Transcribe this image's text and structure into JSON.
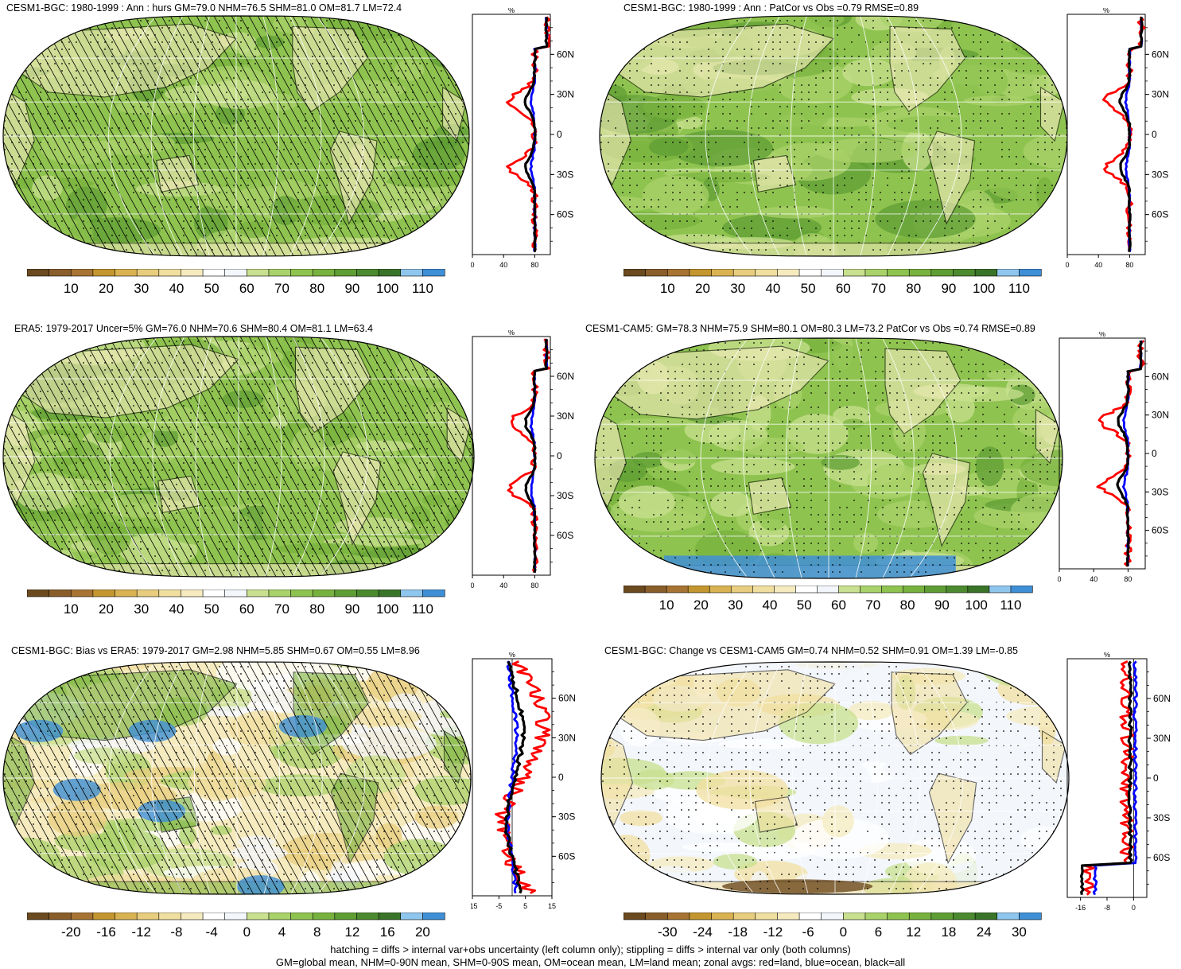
{
  "panels": [
    {
      "id": "p1",
      "title": "CESM1-BGC: 1980-1999 : Ann : hurs GM=79.0 NHM=76.5 SHM=81.0 OM=81.7 LM=72.4",
      "colorbar": {
        "labels": [
          "10",
          "20",
          "30",
          "40",
          "50",
          "60",
          "70",
          "80",
          "90",
          "100",
          "110"
        ]
      },
      "zonal": {
        "unit": "%",
        "lat_labels": [
          "60N",
          "30N",
          "0",
          "30S",
          "60S"
        ],
        "x_labels": [
          "0",
          "40",
          "80"
        ],
        "xlim": [
          0,
          100
        ],
        "zero_line": false
      }
    },
    {
      "id": "p2",
      "title": "CESM1-BGC: 1980-1999 : Ann : PatCor vs Obs =0.79 RMSE=0.89",
      "colorbar": {
        "labels": [
          "10",
          "20",
          "30",
          "40",
          "50",
          "60",
          "70",
          "80",
          "90",
          "100",
          "110"
        ]
      },
      "zonal": {
        "unit": "%",
        "lat_labels": [
          "60N",
          "30N",
          "0",
          "30S",
          "60S"
        ],
        "x_labels": [
          "0",
          "40",
          "80"
        ],
        "xlim": [
          0,
          100
        ],
        "zero_line": false
      }
    },
    {
      "id": "p3",
      "title": "ERA5: 1979-2017 Uncer=5% GM=76.0 NHM=70.6 SHM=80.4 OM=81.1 LM=63.4",
      "colorbar": {
        "labels": [
          "10",
          "20",
          "30",
          "40",
          "50",
          "60",
          "70",
          "80",
          "90",
          "100",
          "110"
        ]
      },
      "zonal": {
        "unit": "%",
        "lat_labels": [
          "60N",
          "30N",
          "0",
          "30S",
          "60S"
        ],
        "x_labels": [
          "0",
          "40",
          "80"
        ],
        "xlim": [
          0,
          100
        ],
        "zero_line": false
      }
    },
    {
      "id": "p4",
      "title": "CESM1-CAM5: GM=78.3 NHM=75.9 SHM=80.1 OM=80.3 LM=73.2 PatCor vs Obs =0.74 RMSE=0.89",
      "colorbar": {
        "labels": [
          "10",
          "20",
          "30",
          "40",
          "50",
          "60",
          "70",
          "80",
          "90",
          "100",
          "110"
        ]
      },
      "zonal": {
        "unit": "%",
        "lat_labels": [
          "60N",
          "30N",
          "0",
          "30S",
          "60S"
        ],
        "x_labels": [
          "0",
          "40",
          "80"
        ],
        "xlim": [
          0,
          100
        ],
        "zero_line": false
      }
    },
    {
      "id": "p5",
      "title": "CESM1-BGC: Bias vs ERA5: 1979-2017 GM=2.98 NHM=5.85 SHM=0.67 OM=0.55 LM=8.96",
      "colorbar": {
        "labels": [
          "-20",
          "-16",
          "-12",
          "-8",
          "-4",
          "0",
          "4",
          "8",
          "12",
          "16",
          "20"
        ]
      },
      "zonal": {
        "unit": "%",
        "lat_labels": [
          "60N",
          "30N",
          "0",
          "30S",
          "60S"
        ],
        "x_labels": [
          "-15",
          "-5",
          "5",
          "15"
        ],
        "xlim": [
          -15,
          15
        ],
        "zero_line": true
      }
    },
    {
      "id": "p6",
      "title": "CESM1-BGC: Change vs CESM1-CAM5 GM=0.74 NHM=0.52 SHM=0.91 OM=1.39 LM=-0.85",
      "colorbar": {
        "labels": [
          "-30",
          "-24",
          "-18",
          "-12",
          "-6",
          "0",
          "6",
          "12",
          "18",
          "24",
          "30"
        ]
      },
      "zonal": {
        "unit": "%",
        "lat_labels": [
          "60N",
          "30N",
          "0",
          "30S",
          "60S"
        ],
        "x_labels": [
          "-16",
          "-8",
          "0"
        ],
        "xlim": [
          -20,
          4
        ],
        "zero_line": true
      }
    }
  ],
  "palettes": {
    "absolute": [
      "#6b4a1f",
      "#8a5e2a",
      "#a87433",
      "#c4962f",
      "#d9b352",
      "#e8cd7e",
      "#f1dfa0",
      "#f6ebbf",
      "#ffffff",
      "#f3f6fb",
      "#c8e08f",
      "#a9d26a",
      "#8fc350",
      "#78b23e",
      "#5f9e34",
      "#4b8a2e",
      "#3a7428",
      "#8fc6ee",
      "#3f8fd6"
    ],
    "difference": [
      "#6b4a1f",
      "#8a5e2a",
      "#a87433",
      "#c4962f",
      "#d9b352",
      "#e8cd7e",
      "#f1dfa0",
      "#f6ebbf",
      "#ffffff",
      "#f3f6fb",
      "#c8e08f",
      "#a9d26a",
      "#8fc350",
      "#78b23e",
      "#5f9e34",
      "#4b8a2e",
      "#3a7428",
      "#8fc6ee",
      "#3f8fd6"
    ]
  },
  "zonal_series_colors": {
    "land": "#ff0000",
    "ocean": "#0000ff",
    "all": "#000000"
  },
  "footer": {
    "line1": "hatching = diffs > internal var+obs uncertainty (left column only); stippling = diffs > internal var only (both columns)",
    "line2": "GM=global mean, NHM=0-90N mean, SHM=0-90S mean, OM=ocean mean, LM=land mean; zonal avgs: red=land, blue=ocean, black=all"
  }
}
